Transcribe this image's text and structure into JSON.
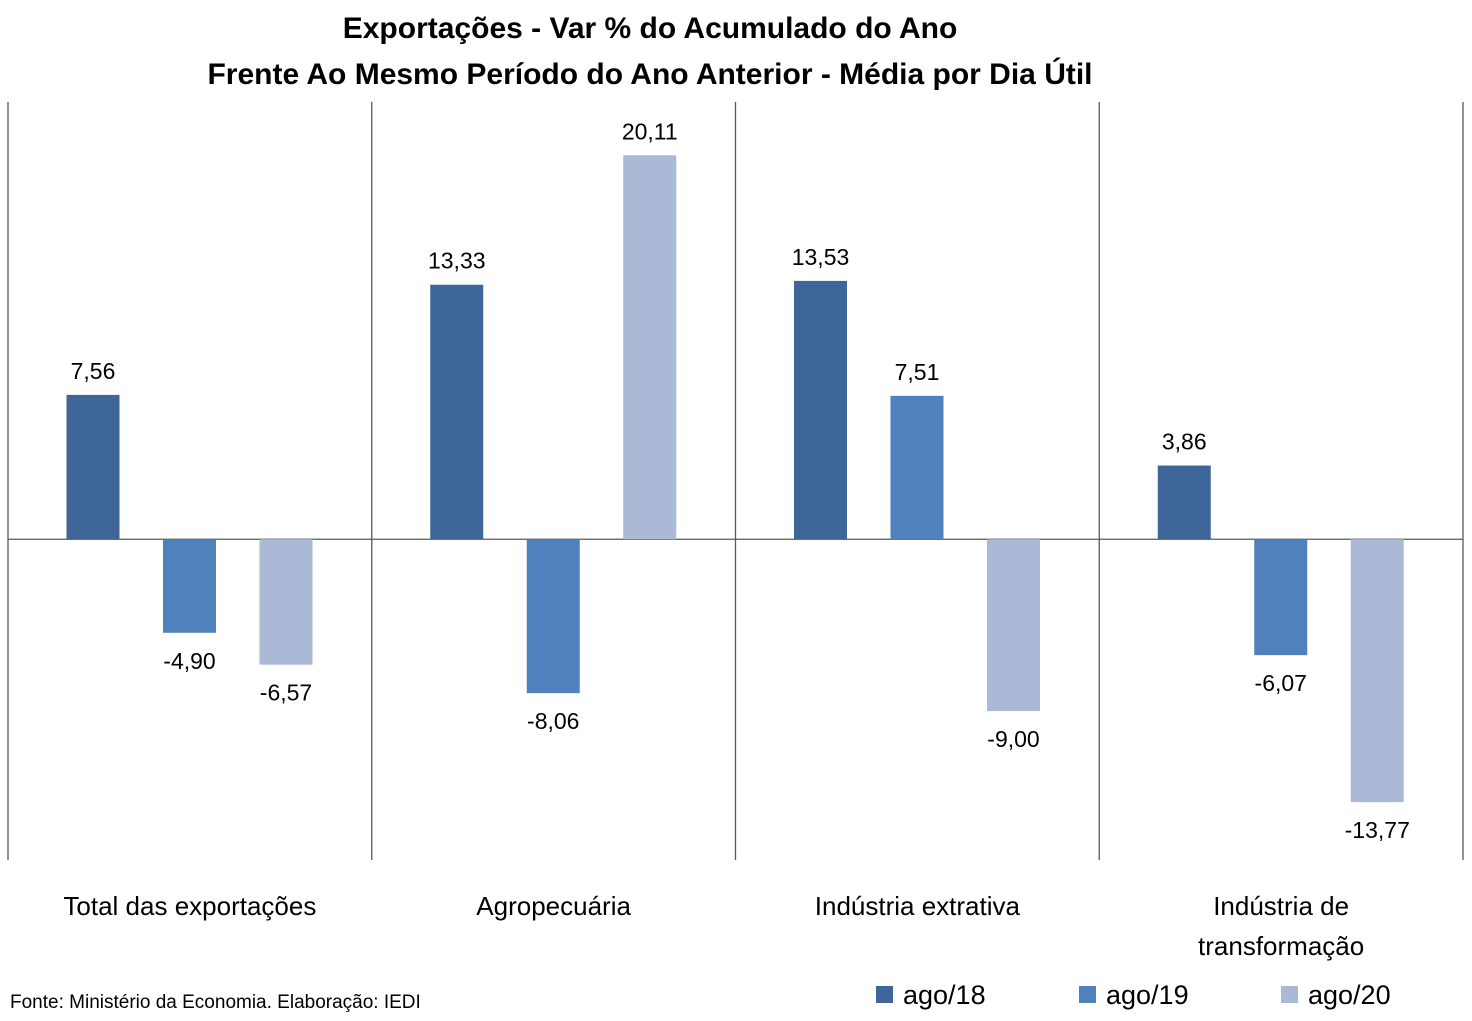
{
  "chart_data": {
    "type": "bar",
    "title_lines": [
      "Exportações - Var % do Acumulado do Ano",
      "Frente Ao Mesmo Período do Ano Anterior - Média por Dia Útil"
    ],
    "categories": [
      [
        "Total das exportações"
      ],
      [
        "Agropecuária"
      ],
      [
        "Indústria extrativa"
      ],
      [
        "Indústria de",
        "transformação"
      ]
    ],
    "series": [
      {
        "name": "ago/18",
        "color": "#3e6699",
        "values": [
          7.56,
          13.33,
          13.53,
          3.86
        ]
      },
      {
        "name": "ago/19",
        "color": "#4f81bd",
        "values": [
          -4.9,
          -8.06,
          7.51,
          -6.07
        ]
      },
      {
        "name": "ago/20",
        "color": "#aab9d6",
        "values": [
          -6.57,
          20.11,
          -9.0,
          -13.77
        ]
      }
    ],
    "data_labels": [
      [
        "7,56",
        "13,33",
        "13,53",
        "3,86"
      ],
      [
        "-4,90",
        "-8,06",
        "7,51",
        "-6,07"
      ],
      [
        "-6,57",
        "20,11",
        "-9,00",
        "-13,77"
      ]
    ],
    "ylim": [
      -16.8,
      22.9
    ],
    "grid": false,
    "legend_position": "bottom-right",
    "source": "Fonte: Ministério da Economia. Elaboração: IEDI"
  }
}
